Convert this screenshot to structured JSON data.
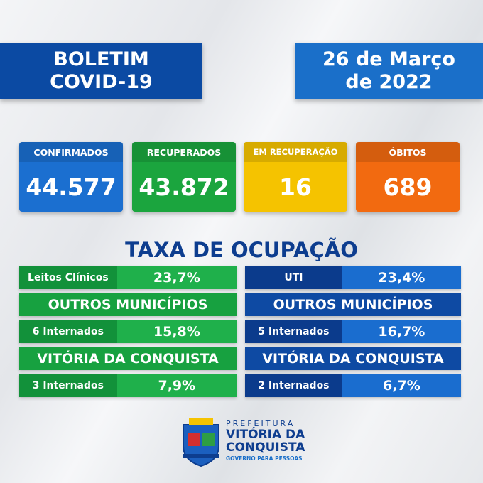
{
  "header": {
    "title_lines": [
      "BOLETIM",
      "COVID-19"
    ],
    "date_lines": [
      "26 de Março",
      "de 2022"
    ]
  },
  "stats": [
    {
      "label": "CONFIRMADOS",
      "value": "44.577"
    },
    {
      "label": "RECUPERADOS",
      "value": "43.872"
    },
    {
      "label": "EM RECUPERAÇÃO",
      "value": "16"
    },
    {
      "label": "ÓBITOS",
      "value": "689"
    }
  ],
  "occupancy": {
    "title": "TAXA DE OCUPAÇÃO",
    "columns": [
      {
        "main": {
          "label": "Leitos Clínicos",
          "value": "23,7%"
        },
        "sections": [
          {
            "heading": "OUTROS MUNICÍPIOS",
            "label": "6 Internados",
            "value": "15,8%"
          },
          {
            "heading": "VITÓRIA DA CONQUISTA",
            "label": "3 Internados",
            "value": "7,9%"
          }
        ]
      },
      {
        "main": {
          "label": "UTI",
          "value": "23,4%"
        },
        "sections": [
          {
            "heading": "OUTROS MUNICÍPIOS",
            "label": "5 Internados",
            "value": "16,7%"
          },
          {
            "heading": "VITÓRIA DA CONQUISTA",
            "label": "2 Internados",
            "value": "6,7%"
          }
        ]
      }
    ]
  },
  "footer": {
    "prefeitura": "PREFEITURA",
    "city_lines": [
      "VITÓRIA DA",
      "CONQUISTA"
    ],
    "slogan": "GOVERNO PARA PESSOAS"
  }
}
